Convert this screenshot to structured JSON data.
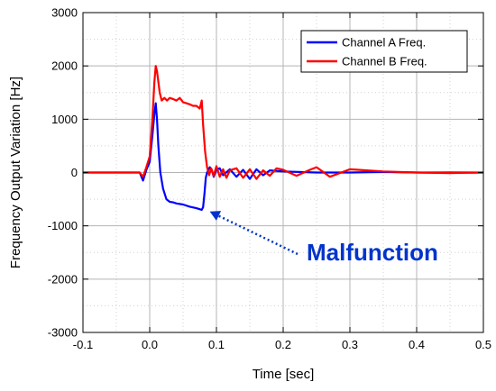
{
  "chart_data": {
    "type": "line",
    "xlabel": "Time [sec]",
    "ylabel": "Frequency Output Variation [Hz]",
    "xlim": [
      -0.1,
      0.5
    ],
    "ylim": [
      -3000,
      3000
    ],
    "x_ticks": [
      -0.1,
      0.0,
      0.1,
      0.2,
      0.3,
      0.4,
      0.5
    ],
    "x_tick_labels": [
      "-0.1",
      "0.0",
      "0.1",
      "0.2",
      "0.3",
      "0.4",
      "0.5"
    ],
    "y_ticks": [
      -3000,
      -2000,
      -1000,
      0,
      1000,
      2000,
      3000
    ],
    "y_tick_labels": [
      "-3000",
      "-2000",
      "-1000",
      "0",
      "1000",
      "2000",
      "3000"
    ],
    "grid": true,
    "legend_position": "top-right",
    "series": [
      {
        "name": "Channel A Freq.",
        "color": "#0000ff",
        "x": [
          -0.1,
          -0.015,
          -0.01,
          -0.005,
          0.0,
          0.004,
          0.007,
          0.009,
          0.011,
          0.013,
          0.016,
          0.02,
          0.025,
          0.03,
          0.035,
          0.04,
          0.05,
          0.06,
          0.07,
          0.078,
          0.08,
          0.082,
          0.084,
          0.086,
          0.088,
          0.09,
          0.093,
          0.096,
          0.1,
          0.105,
          0.11,
          0.12,
          0.13,
          0.14,
          0.15,
          0.16,
          0.17,
          0.18,
          0.2,
          0.25,
          0.3,
          0.35,
          0.4,
          0.45,
          0.5
        ],
        "y": [
          0,
          0,
          -150,
          50,
          200,
          700,
          1100,
          1300,
          1000,
          500,
          0,
          -300,
          -500,
          -550,
          -560,
          -580,
          -600,
          -640,
          -670,
          -700,
          -650,
          -400,
          -100,
          0,
          50,
          100,
          50,
          -80,
          50,
          80,
          -50,
          60,
          -80,
          50,
          -120,
          60,
          -50,
          40,
          20,
          0,
          0,
          10,
          0,
          0,
          0
        ],
        "show_in_legend": true
      },
      {
        "name": "Channel B Freq.",
        "color": "#ff0000",
        "x": [
          -0.1,
          -0.015,
          -0.01,
          -0.005,
          0.0,
          0.004,
          0.007,
          0.009,
          0.011,
          0.013,
          0.015,
          0.018,
          0.022,
          0.026,
          0.03,
          0.035,
          0.04,
          0.045,
          0.05,
          0.055,
          0.06,
          0.065,
          0.07,
          0.075,
          0.078,
          0.08,
          0.083,
          0.086,
          0.089,
          0.092,
          0.096,
          0.1,
          0.105,
          0.11,
          0.115,
          0.12,
          0.13,
          0.14,
          0.15,
          0.16,
          0.17,
          0.18,
          0.19,
          0.2,
          0.22,
          0.24,
          0.25,
          0.27,
          0.3,
          0.35,
          0.4,
          0.45,
          0.5
        ],
        "y": [
          0,
          0,
          -80,
          100,
          300,
          1000,
          1700,
          2000,
          1900,
          1700,
          1500,
          1350,
          1400,
          1350,
          1400,
          1380,
          1350,
          1400,
          1320,
          1300,
          1280,
          1250,
          1250,
          1200,
          1350,
          900,
          400,
          100,
          -50,
          80,
          -60,
          120,
          -80,
          60,
          -100,
          40,
          80,
          -100,
          60,
          -120,
          40,
          -60,
          80,
          50,
          -60,
          50,
          100,
          -80,
          60,
          20,
          0,
          -10,
          0
        ],
        "show_in_legend": true
      }
    ],
    "annotations": [
      {
        "text": "Malfunction",
        "color": "#0033cc",
        "arrow_style": "dotted",
        "arrow_target": [
          0.09,
          -730
        ]
      }
    ]
  }
}
